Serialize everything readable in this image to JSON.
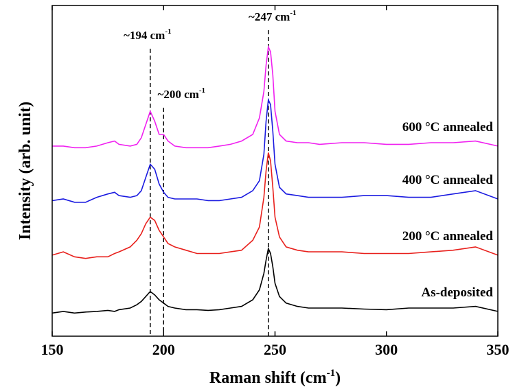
{
  "chart_data": {
    "type": "line",
    "xlabel": {
      "main": "Raman shift (cm",
      "sup": "-1",
      "end": ")"
    },
    "ylabel": "Intensity (arb. unit)",
    "x": [
      150,
      155,
      160,
      165,
      170,
      175,
      178,
      180,
      185,
      188,
      190,
      192,
      194,
      196,
      198,
      200,
      202,
      205,
      210,
      215,
      220,
      225,
      230,
      235,
      240,
      243,
      245,
      246,
      247,
      248,
      249,
      250,
      252,
      255,
      260,
      265,
      270,
      280,
      290,
      300,
      310,
      320,
      330,
      340,
      350
    ],
    "series": [
      {
        "name": "As-deposited",
        "color": "#000000",
        "values": [
          7,
          7.5,
          7,
          7.3,
          7.5,
          7.8,
          7.5,
          8,
          8.5,
          9.5,
          10.5,
          12,
          13.5,
          12.5,
          11,
          10,
          9,
          8.5,
          8,
          8,
          7.8,
          8,
          8.5,
          9,
          11,
          14,
          19,
          23,
          26.5,
          25,
          21,
          16,
          12,
          10,
          9,
          8.5,
          8.5,
          8.5,
          8.2,
          8,
          8.5,
          8.5,
          8.5,
          9,
          7.5
        ]
      },
      {
        "name": "200 °C annealed",
        "color": "#e8201c",
        "values": [
          24.5,
          25.5,
          24,
          23.5,
          24,
          24,
          25,
          25.5,
          27,
          29,
          31,
          34,
          36,
          35,
          32,
          30,
          28,
          27,
          26,
          25,
          25,
          25,
          25.5,
          26,
          29,
          33,
          42,
          50,
          55.5,
          53,
          45,
          36,
          30,
          27,
          26,
          25.5,
          25.5,
          25.5,
          25,
          25,
          25,
          25.5,
          26,
          27,
          24.5
        ]
      },
      {
        "name": "400 °C annealed",
        "color": "#1a1ae0",
        "values": [
          41,
          41.5,
          40.5,
          40.5,
          42,
          43,
          43.5,
          42.5,
          42,
          42.5,
          44,
          48,
          52,
          50.5,
          46,
          43.5,
          42,
          41.5,
          41.5,
          41.5,
          41,
          41,
          41.5,
          42,
          44,
          47,
          55,
          65,
          71.5,
          70,
          62,
          52,
          45,
          43,
          42.5,
          42,
          42,
          42,
          42.5,
          42.5,
          42,
          42,
          43,
          44,
          41.5
        ]
      },
      {
        "name": "600 °C annealed",
        "color": "#f020f0",
        "values": [
          57.5,
          57.5,
          57,
          57,
          57.5,
          58.5,
          59,
          58,
          57.5,
          58,
          60,
          64,
          68,
          65,
          61,
          61,
          59,
          57.5,
          57,
          57,
          57,
          57.5,
          58,
          59,
          61,
          66,
          74,
          82,
          87.5,
          86,
          79,
          68,
          61,
          59,
          58.5,
          58.5,
          58,
          58.5,
          58.5,
          58,
          58,
          58.5,
          58.5,
          59,
          57.5
        ]
      }
    ],
    "annotations": [
      {
        "x": 194,
        "text": "~194 cm",
        "sup": "-1"
      },
      {
        "x": 200,
        "text": "~200 cm",
        "sup": "-1"
      },
      {
        "x": 247,
        "text": "~247 cm",
        "sup": "-1"
      }
    ],
    "xlim": [
      150,
      350
    ],
    "xticks": [
      150,
      200,
      250,
      300,
      350
    ],
    "ylim": [
      0,
      100
    ]
  }
}
